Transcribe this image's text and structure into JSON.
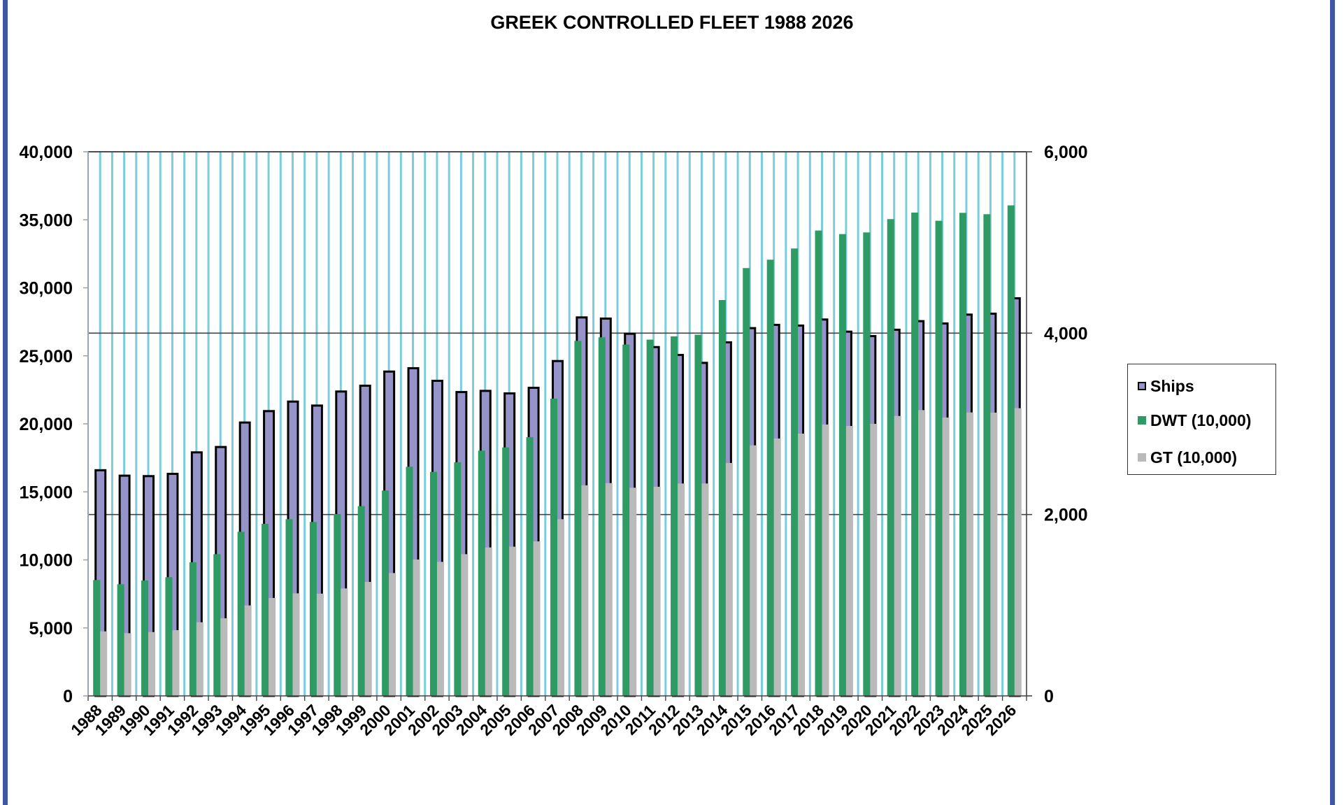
{
  "chart_data": {
    "type": "bar",
    "title": "GREEK CONTROLLED FLEET 1988 2026",
    "xlabel": "",
    "ylabel_left": "",
    "ylabel_right": "",
    "categories": [
      "1988",
      "1989",
      "1990",
      "1991",
      "1992",
      "1993",
      "1994",
      "1995",
      "1996",
      "1997",
      "1998",
      "1999",
      "2000",
      "2001",
      "2002",
      "2003",
      "2004",
      "2005",
      "2006",
      "2007",
      "2008",
      "2009",
      "2010",
      "2011",
      "2012",
      "2013",
      "2014",
      "2015",
      "2016",
      "2017",
      "2018",
      "2019",
      "2020",
      "2021",
      "2022",
      "2023",
      "2024",
      "2025",
      "2026"
    ],
    "series": [
      {
        "name": "Ships",
        "axis": "right",
        "color": "#9593C8",
        "values": [
          2500,
          2440,
          2435,
          2460,
          2697,
          2756,
          3026,
          3152,
          3257,
          3213,
          3368,
          3432,
          3588,
          3625,
          3486,
          3362,
          3375,
          3347,
          3409,
          3704,
          4185,
          4172,
          4005,
          3858,
          3771,
          3684,
          3910,
          4067,
          4103,
          4095,
          4162,
          4028,
          3979,
          4049,
          4144,
          4118,
          4216,
          4226,
          4396
        ]
      },
      {
        "name": "DWT (10,000)",
        "axis": "left",
        "color": "#2E9A64",
        "values": [
          8520,
          8210,
          8480,
          8725,
          9820,
          10420,
          12065,
          12650,
          12990,
          12785,
          13370,
          13950,
          15100,
          16850,
          16470,
          17170,
          18030,
          18270,
          19025,
          21850,
          26100,
          26360,
          25830,
          26190,
          26430,
          26550,
          29100,
          31450,
          32065,
          32890,
          34210,
          33950,
          34070,
          35050,
          35530,
          34930,
          35510,
          35410,
          36060
        ]
      },
      {
        "name": "GT (10,000)",
        "axis": "left",
        "color": "#BABABA",
        "values": [
          4745,
          4610,
          4695,
          4830,
          5415,
          5705,
          6650,
          7200,
          7540,
          7520,
          7900,
          8380,
          9030,
          10025,
          9855,
          10420,
          10915,
          10970,
          11360,
          12990,
          15475,
          15645,
          15305,
          15375,
          15615,
          15615,
          17120,
          18420,
          18920,
          19280,
          19950,
          19845,
          20000,
          20580,
          21010,
          20460,
          20840,
          20825,
          21150
        ]
      }
    ],
    "left_axis": {
      "ylim": [
        0,
        40000
      ],
      "ticks": [
        "0",
        "5,000",
        "10,000",
        "15,000",
        "20,000",
        "25,000",
        "30,000",
        "35,000",
        "40,000"
      ],
      "tick_values": [
        0,
        5000,
        10000,
        15000,
        20000,
        25000,
        30000,
        35000,
        40000
      ]
    },
    "right_axis": {
      "ylim": [
        0,
        6000
      ],
      "ticks": [
        "0",
        "2,000",
        "4,000",
        "6,000"
      ],
      "tick_values": [
        0,
        2000,
        4000,
        6000
      ]
    },
    "grid": {
      "vertical": true,
      "horizontal_right_axis": true,
      "vertical_color": "#7BCDDB"
    },
    "legend": {
      "position": "right",
      "entries": [
        {
          "label": "Ships",
          "color": "#9593C8"
        },
        {
          "label": "DWT (10,000)",
          "color": "#2E9A64"
        },
        {
          "label": "GT (10,000)",
          "color": "#BABABA"
        }
      ]
    },
    "frame_color": "#3F55A6"
  }
}
